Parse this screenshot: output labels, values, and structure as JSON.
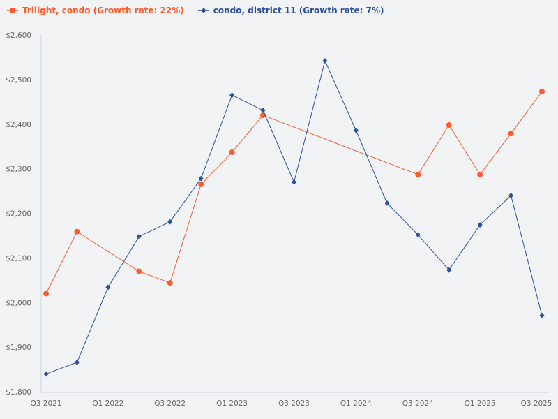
{
  "chart_data": {
    "type": "line",
    "title": "",
    "xlabel": "",
    "ylabel": "",
    "ylim": [
      1800,
      2600
    ],
    "yticks": [
      "$1,800",
      "$1,900",
      "$2,000",
      "$2,100",
      "$2,200",
      "$2,300",
      "$2,400",
      "$2,500",
      "$2,600"
    ],
    "ytick_values": [
      1800,
      1900,
      2000,
      2100,
      2200,
      2300,
      2400,
      2500,
      2600
    ],
    "x": [
      "Q3 2021",
      "Q4 2021",
      "Q1 2022",
      "Q2 2022",
      "Q3 2022",
      "Q4 2022",
      "Q1 2023",
      "Q2 2023",
      "Q3 2023",
      "Q4 2023",
      "Q1 2024",
      "Q2 2024",
      "Q3 2024",
      "Q4 2024",
      "Q1 2025",
      "Q2 2025",
      "Q3 2025"
    ],
    "xticks": [
      "Q3 2021",
      "Q1 2022",
      "Q3 2022",
      "Q1 2023",
      "Q3 2023",
      "Q1 2024",
      "Q3 2024",
      "Q1 2025",
      "Q3 2025"
    ],
    "grid": false,
    "legend_position": "top-left",
    "series": [
      {
        "name": "Trilight, condo (Growth rate: 22%)",
        "color": "#ff5a2c",
        "marker": "circle",
        "values": [
          2020,
          2159,
          null,
          2070,
          2044,
          2265,
          2337,
          2420,
          null,
          null,
          null,
          null,
          2287,
          2398,
          2287,
          2379,
          2473
        ]
      },
      {
        "name": "condo, district 11 (Growth rate: 7%)",
        "color": "#2a4fa0",
        "marker": "diamond",
        "values": [
          1840,
          1866,
          2034,
          2148,
          2181,
          2278,
          2465,
          2431,
          2270,
          2542,
          2386,
          2223,
          2152,
          2073,
          2174,
          2240,
          1971
        ]
      }
    ]
  }
}
